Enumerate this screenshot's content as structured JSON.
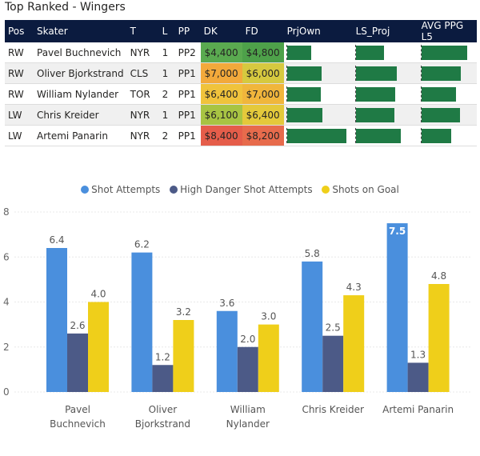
{
  "title": "Top Ranked - Wingers",
  "table": {
    "headers": [
      "Pos",
      "Skater",
      "T",
      "L",
      "PP",
      "DK",
      "FD",
      "PrjOwn",
      "LS_Proj",
      "AVG PPG L5"
    ],
    "rows": [
      {
        "pos": "RW",
        "skater": "Pavel Buchnevich",
        "team": "NYR",
        "line": "1",
        "pp": "PP2",
        "dk": "$4,400",
        "fd": "$4,800",
        "dk_color": "#5aaa50",
        "fd_color": "#4ea14a",
        "prjown": 0.5,
        "ls_proj": 0.58,
        "avg_ppg": 0.95
      },
      {
        "pos": "RW",
        "skater": "Oliver Bjorkstrand",
        "team": "CLS",
        "line": "1",
        "pp": "PP1",
        "dk": "$7,000",
        "fd": "$6,000",
        "dk_color": "#f2a93b",
        "fd_color": "#d6c93f",
        "prjown": 0.72,
        "ls_proj": 0.85,
        "avg_ppg": 0.82
      },
      {
        "pos": "RW",
        "skater": "William Nylander",
        "team": "TOR",
        "line": "2",
        "pp": "PP1",
        "dk": "$6,400",
        "fd": "$7,000",
        "dk_color": "#f0c33c",
        "fd_color": "#f0b63c",
        "prjown": 0.7,
        "ls_proj": 0.82,
        "avg_ppg": 0.72
      },
      {
        "pos": "LW",
        "skater": "Chris Kreider",
        "team": "NYR",
        "line": "1",
        "pp": "PP1",
        "dk": "$6,100",
        "fd": "$6,400",
        "dk_color": "#a8c443",
        "fd_color": "#e4c93b",
        "prjown": 0.74,
        "ls_proj": 0.8,
        "avg_ppg": 0.8
      },
      {
        "pos": "LW",
        "skater": "Artemi Panarin",
        "team": "NYR",
        "line": "2",
        "pp": "PP1",
        "dk": "$8,400",
        "fd": "$8,200",
        "dk_color": "#e55d4a",
        "fd_color": "#e76b4c",
        "prjown": 1.2,
        "ls_proj": 0.94,
        "avg_ppg": 0.62
      }
    ]
  },
  "colors": {
    "shot_attempts": "#4a8fdd",
    "high_danger": "#4c5a87",
    "shots_on_goal": "#efcf1a"
  },
  "chart_data": {
    "type": "bar",
    "categories": [
      "Pavel Buchnevich",
      "Oliver Bjorkstrand",
      "William Nylander",
      "Chris Kreider",
      "Artemi Panarin"
    ],
    "series": [
      {
        "name": "Shot Attempts",
        "values": [
          6.4,
          6.2,
          3.6,
          5.8,
          7.5
        ],
        "labels": [
          "6.4",
          "6.2",
          "3.6",
          "5.8",
          "7.5"
        ]
      },
      {
        "name": "High Danger Shot Attempts",
        "values": [
          2.6,
          1.2,
          2.0,
          2.5,
          1.3
        ],
        "labels": [
          "2.6",
          "1.2",
          "2.0",
          "2.5",
          "1.3"
        ]
      },
      {
        "name": "Shots on Goal",
        "values": [
          4.0,
          3.2,
          3.0,
          4.3,
          4.8
        ],
        "labels": [
          "4.0",
          "3.2",
          "3.0",
          "4.3",
          "4.8"
        ]
      }
    ],
    "ylim": [
      0,
      8
    ],
    "yticks": [
      0,
      2,
      4,
      6,
      8
    ],
    "ytick_labels": [
      "0",
      "2",
      "4",
      "6",
      "8"
    ],
    "category_label_lines": [
      [
        "Pavel",
        "Buchnevich"
      ],
      [
        "Oliver",
        "Bjorkstrand"
      ],
      [
        "William",
        "Nylander"
      ],
      [
        "Chris Kreider"
      ],
      [
        "Artemi Panarin"
      ]
    ]
  }
}
